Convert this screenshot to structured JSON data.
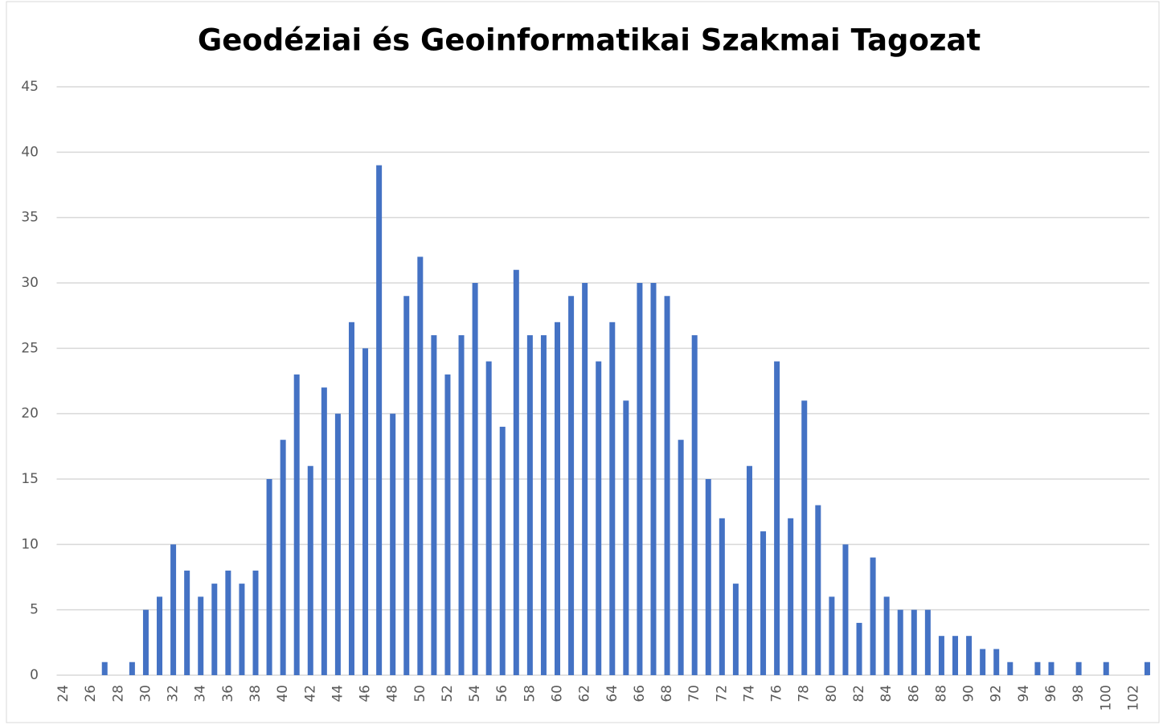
{
  "chart_data": {
    "type": "bar",
    "title": "Geodéziai és Geoinformatikai Szakmai Tagozat",
    "categories": [
      "24",
      null,
      "26",
      null,
      "28",
      null,
      "30",
      null,
      "32",
      null,
      "34",
      null,
      "36",
      null,
      "38",
      null,
      "40",
      null,
      "42",
      null,
      "44",
      null,
      "46",
      null,
      "48",
      null,
      "50",
      null,
      "52",
      null,
      "54",
      null,
      "56",
      null,
      "58",
      null,
      "60",
      null,
      "62",
      null,
      "64",
      null,
      "66",
      null,
      "68",
      null,
      "70",
      null,
      "72",
      null,
      "74",
      null,
      "76",
      null,
      "78",
      null,
      "80",
      null,
      "82",
      null,
      "84",
      null,
      "86",
      null,
      "88",
      null,
      "90",
      null,
      "92",
      null,
      "94",
      null,
      "96",
      null,
      "98",
      null,
      "100",
      null,
      "102",
      null
    ],
    "values": [
      0,
      0,
      0,
      1,
      0,
      1,
      5,
      6,
      10,
      8,
      6,
      7,
      8,
      7,
      8,
      15,
      18,
      23,
      16,
      22,
      20,
      27,
      25,
      39,
      20,
      29,
      32,
      26,
      23,
      26,
      30,
      24,
      19,
      31,
      26,
      26,
      27,
      29,
      30,
      24,
      27,
      21,
      30,
      30,
      29,
      18,
      26,
      15,
      12,
      7,
      16,
      11,
      24,
      12,
      21,
      13,
      6,
      10,
      4,
      9,
      6,
      5,
      5,
      5,
      3,
      3,
      3,
      2,
      2,
      1,
      0,
      1,
      1,
      0,
      1,
      0,
      1,
      0,
      0,
      1
    ],
    "color": "#4472c4",
    "ylim": [
      0,
      45
    ],
    "yticks": [
      0,
      5,
      10,
      15,
      20,
      25,
      30,
      35,
      40,
      45
    ],
    "grid": true
  }
}
